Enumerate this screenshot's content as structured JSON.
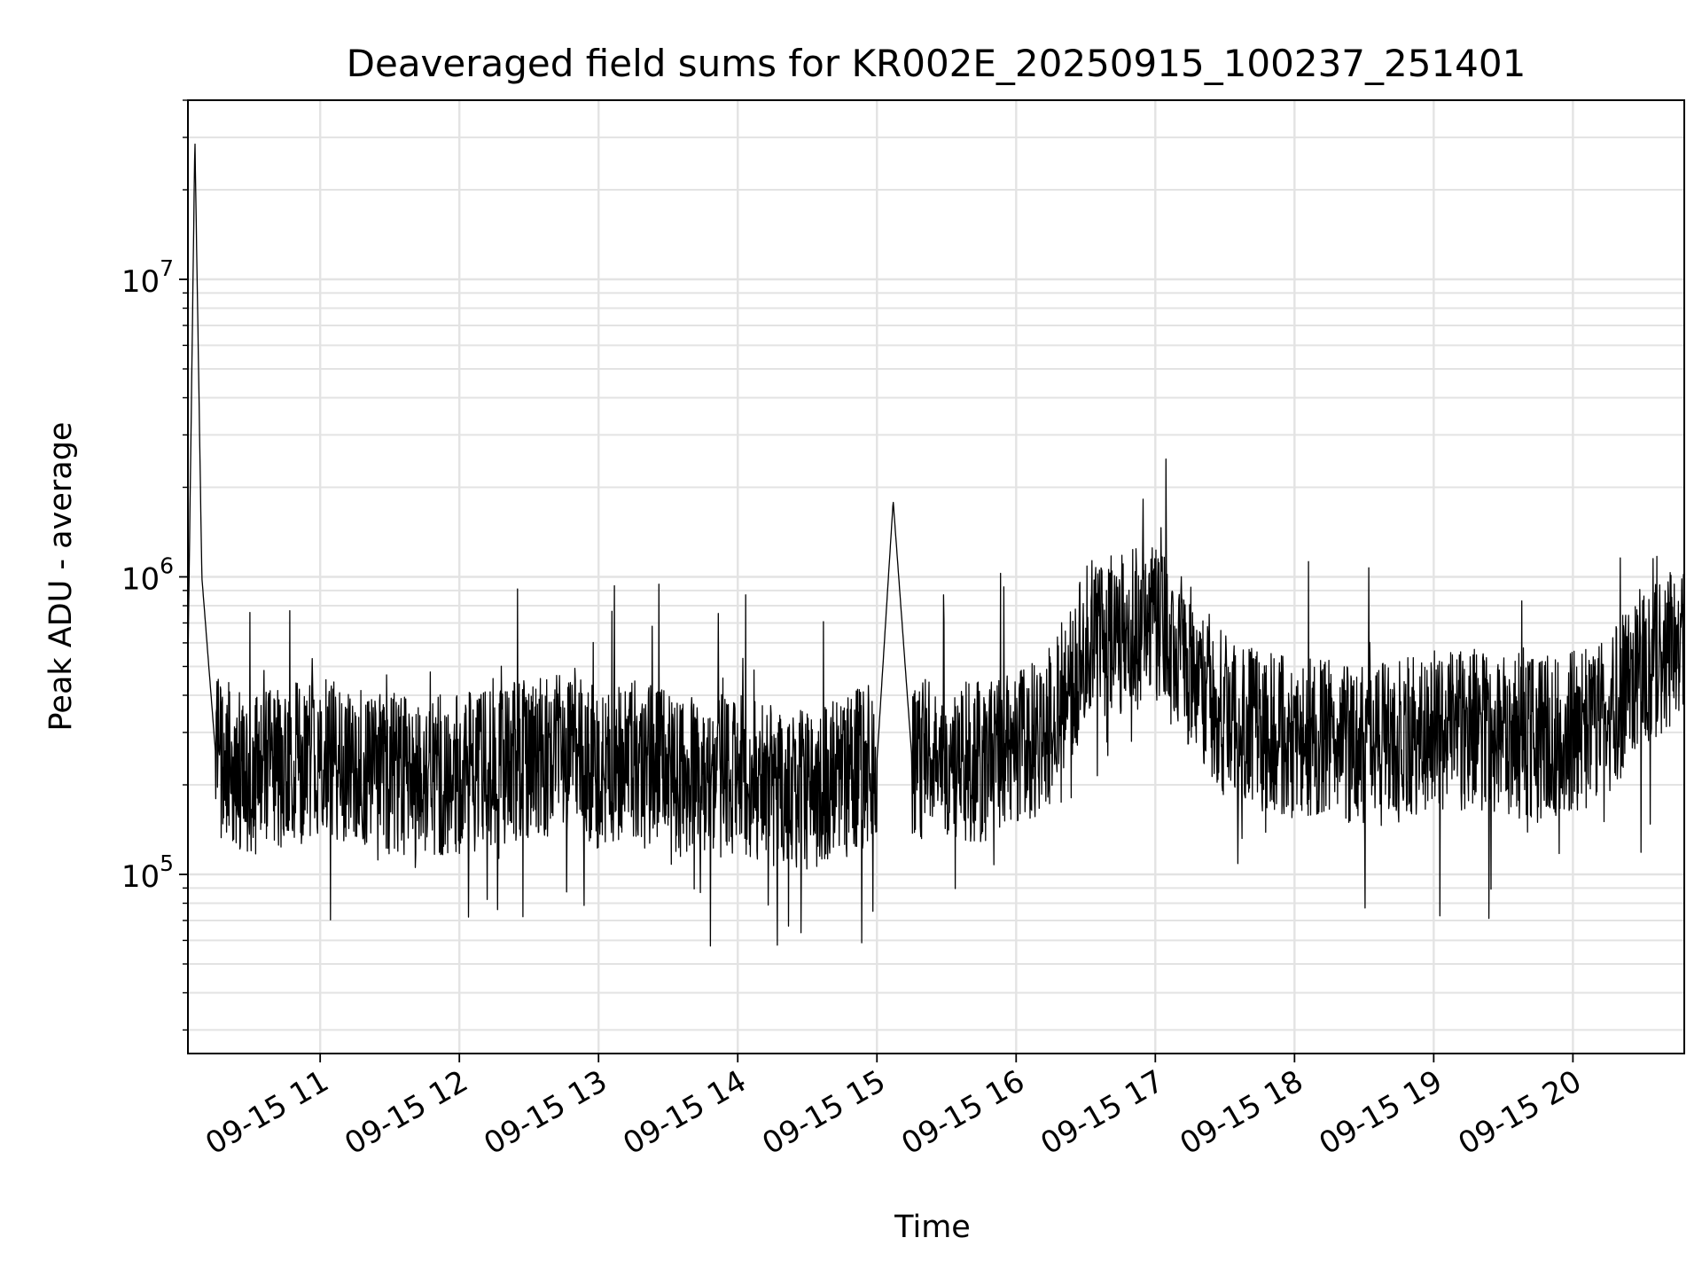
{
  "chart_data": {
    "type": "line",
    "title": "Deaveraged field sums for KR002E_20250915_100237_251401",
    "xlabel": "Time",
    "ylabel": "Peak ADU - average",
    "x_scale": "time",
    "y_scale": "log",
    "xlim": [
      "2025-09-15T10:03:00",
      "2025-09-15T20:48:00"
    ],
    "ylim": [
      25000,
      40000000
    ],
    "x_tick_labels": [
      "09-15 11",
      "09-15 12",
      "09-15 13",
      "09-15 14",
      "09-15 15",
      "09-15 16",
      "09-15 17",
      "09-15 18",
      "09-15 19",
      "09-15 20"
    ],
    "x_tick_times": [
      "2025-09-15T11:00:00",
      "2025-09-15T12:00:00",
      "2025-09-15T13:00:00",
      "2025-09-15T14:00:00",
      "2025-09-15T15:00:00",
      "2025-09-15T16:00:00",
      "2025-09-15T17:00:00",
      "2025-09-15T18:00:00",
      "2025-09-15T19:00:00",
      "2025-09-15T20:00:00"
    ],
    "y_ticks": [
      {
        "base": "10",
        "exp": "5",
        "value": 100000
      },
      {
        "base": "10",
        "exp": "6",
        "value": 1000000
      },
      {
        "base": "10",
        "exp": "7",
        "value": 10000000
      }
    ],
    "grid": true,
    "line_color": "#000000",
    "series": [
      {
        "x": [
          "2025-09-15T10:03:00",
          "2025-09-15T10:06:00",
          "2025-09-15T10:09:00",
          "2025-09-15T10:15:00",
          "2025-09-15T10:30:00",
          "2025-09-15T10:45:00",
          "2025-09-15T11:00:00",
          "2025-09-15T11:15:00",
          "2025-09-15T11:30:00",
          "2025-09-15T11:45:00",
          "2025-09-15T12:00:00",
          "2025-09-15T12:15:00",
          "2025-09-15T12:30:00",
          "2025-09-15T12:45:00",
          "2025-09-15T13:00:00",
          "2025-09-15T13:15:00",
          "2025-09-15T13:30:00",
          "2025-09-15T13:45:00",
          "2025-09-15T14:00:00",
          "2025-09-15T14:15:00",
          "2025-09-15T14:30:00",
          "2025-09-15T14:45:00",
          "2025-09-15T15:00:00",
          "2025-09-15T15:07:00",
          "2025-09-15T15:15:00",
          "2025-09-15T15:30:00",
          "2025-09-15T15:45:00",
          "2025-09-15T16:00:00",
          "2025-09-15T16:15:00",
          "2025-09-15T16:30:00",
          "2025-09-15T16:45:00",
          "2025-09-15T17:00:00",
          "2025-09-15T17:15:00",
          "2025-09-15T17:30:00",
          "2025-09-15T17:45:00",
          "2025-09-15T18:00:00",
          "2025-09-15T18:15:00",
          "2025-09-15T18:30:00",
          "2025-09-15T18:45:00",
          "2025-09-15T19:00:00",
          "2025-09-15T19:15:00",
          "2025-09-15T19:30:00",
          "2025-09-15T19:45:00",
          "2025-09-15T20:00:00",
          "2025-09-15T20:15:00",
          "2025-09-15T20:30:00",
          "2025-09-15T20:45:00"
        ],
        "y": [
          500000,
          30000000,
          1000000,
          250000,
          210000,
          230000,
          250000,
          230000,
          220000,
          210000,
          220000,
          230000,
          240000,
          250000,
          230000,
          240000,
          220000,
          210000,
          220000,
          200000,
          190000,
          210000,
          240000,
          1800000,
          250000,
          230000,
          240000,
          270000,
          310000,
          600000,
          650000,
          700000,
          500000,
          340000,
          300000,
          290000,
          280000,
          270000,
          280000,
          300000,
          310000,
          290000,
          280000,
          300000,
          330000,
          500000,
          600000
        ]
      }
    ]
  }
}
